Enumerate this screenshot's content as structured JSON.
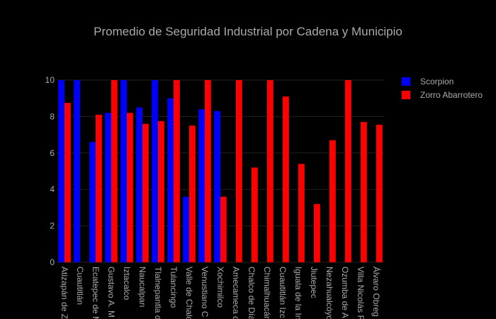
{
  "chart_data": {
    "type": "bar",
    "title": "Promedio de Seguridad Industrial por Cadena y Municipio",
    "xlabel": "",
    "ylabel": "",
    "ylim": [
      0,
      10
    ],
    "yticks": [
      0,
      2,
      4,
      6,
      8,
      10
    ],
    "grid": true,
    "legend_position": "top-right",
    "categories": [
      "Atizapán de Z",
      "Cuautitlán",
      "Ecatepec de M",
      "Gustavo A. M",
      "Iztacalco",
      "Naucalpan",
      "Tlalnepantla d",
      "Tulancingo",
      "Valle de Chalc",
      "Venustiano C",
      "Xochimilco",
      "Amecameca d",
      "Chalco de Día",
      "Chimalhuacán",
      "Cuautitlán Izc",
      "Iguala de la In",
      "Jiutepec",
      "Nezahualcóyo",
      "Ozumba de A",
      "Villa Nicolás R",
      "Álvaro Obreg"
    ],
    "series": [
      {
        "name": "Scorpion",
        "color": "#0000ff",
        "values": [
          10,
          10,
          6.6,
          8.2,
          10,
          8.5,
          10,
          9.0,
          3.6,
          8.4,
          8.3,
          null,
          null,
          null,
          null,
          null,
          null,
          null,
          null,
          null,
          null
        ]
      },
      {
        "name": "Zorro Abarrotero",
        "color": "#ff0000",
        "values": [
          8.75,
          null,
          8.1,
          10,
          8.2,
          7.6,
          7.75,
          10,
          7.5,
          10,
          3.6,
          10,
          5.2,
          10,
          9.1,
          5.4,
          3.2,
          6.7,
          10,
          7.7,
          7.55
        ]
      }
    ]
  }
}
